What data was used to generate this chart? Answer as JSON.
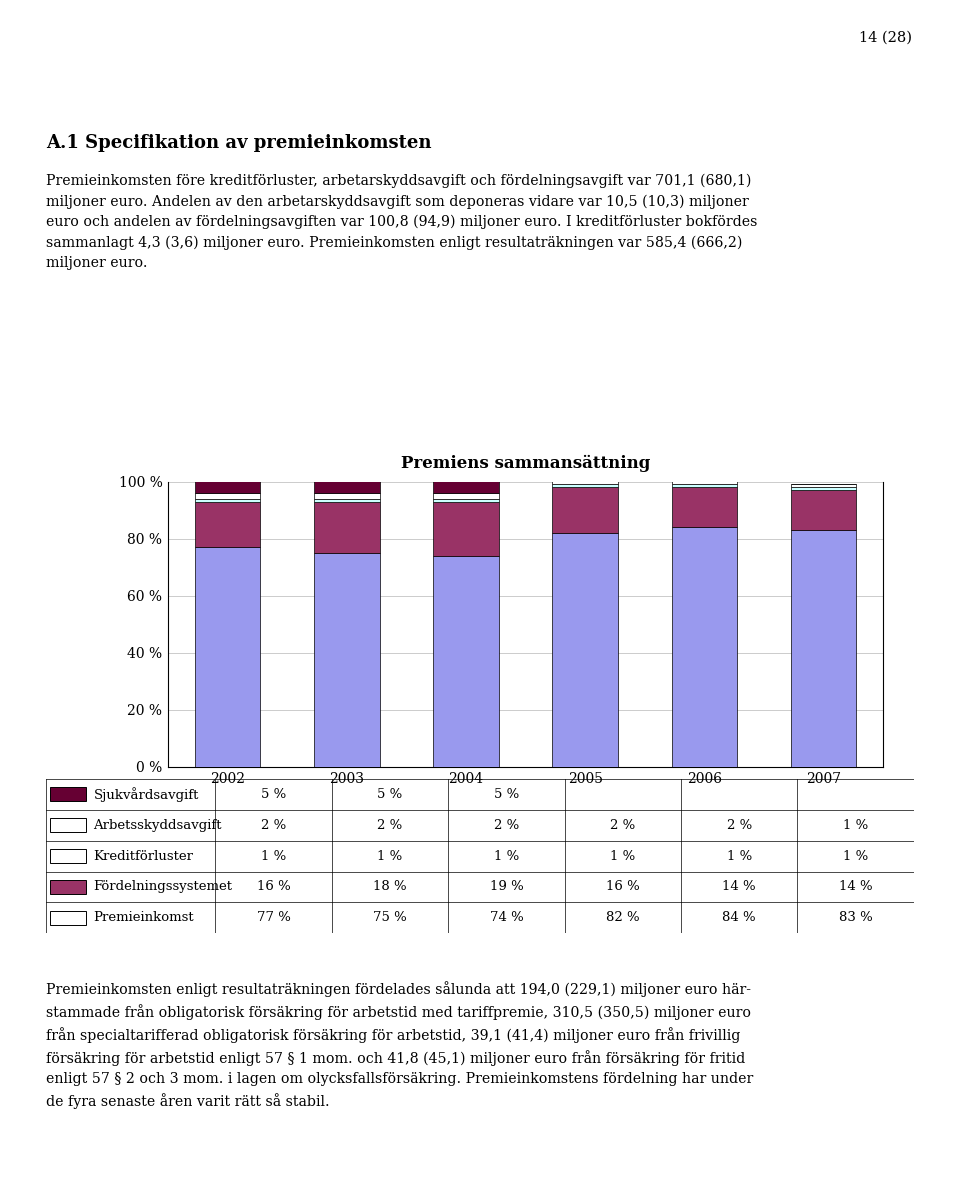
{
  "title": "Premiens sammansättning",
  "years": [
    2002,
    2003,
    2004,
    2005,
    2006,
    2007
  ],
  "stack_order": [
    "Premieinkomst",
    "Fördelningssystemet",
    "Kreditförluster",
    "Arbetsskyddsavgift",
    "Sjukvårdsavgift"
  ],
  "data": {
    "Premieinkomst": [
      77,
      75,
      74,
      82,
      84,
      83
    ],
    "Fördelningssystemet": [
      16,
      18,
      19,
      16,
      14,
      14
    ],
    "Kreditförluster": [
      1,
      1,
      1,
      1,
      1,
      1
    ],
    "Arbetsskyddsavgift": [
      2,
      2,
      2,
      2,
      2,
      1
    ],
    "Sjukvårdsavgift": [
      5,
      5,
      5,
      0,
      0,
      0
    ]
  },
  "colors": {
    "Premieinkomst": "#9999EE",
    "Fördelningssystemet": "#993366",
    "Kreditförluster": "#CCFFFF",
    "Arbetsskyddsavgift": "#FFFFFF",
    "Sjukvårdsavgift": "#660033"
  },
  "legend_order": [
    "Sjukvårdsavgift",
    "Arbetsskyddsavgift",
    "Kreditförluster",
    "Fördelningssystemet",
    "Premieinkomst"
  ],
  "legend_filled": {
    "Sjukvårdsavgift": true,
    "Arbetsskyddsavgift": false,
    "Kreditförluster": false,
    "Fördelningssystemet": true,
    "Premieinkomst": false
  },
  "table_rows": [
    [
      "Sjukvårdsavgift",
      "5 %",
      "5 %",
      "5 %",
      "",
      "",
      ""
    ],
    [
      "Arbetsskyddsavgift",
      "2 %",
      "2 %",
      "2 %",
      "2 %",
      "2 %",
      "1 %"
    ],
    [
      "Kreditförluster",
      "1 %",
      "1 %",
      "1 %",
      "1 %",
      "1 %",
      "1 %"
    ],
    [
      "Fördelningssystemet",
      "16 %",
      "18 %",
      "19 %",
      "16 %",
      "14 %",
      "14 %"
    ],
    [
      "Premieinkomst",
      "77 %",
      "75 %",
      "74 %",
      "82 %",
      "84 %",
      "83 %"
    ]
  ],
  "page_number": "14 (28)",
  "heading": "A.1 Specifikation av premieinkomsten",
  "body_top": "Premieinkomsten före kreditförluster, arbetarskyddsavgift och fördelningsavgift var 701,1 (680,1)\nmiljoner euro. Andelen av den arbetarskyddsavgift som deponeras vidare var 10,5 (10,3) miljoner\neuro och andelen av fördelningsavgiften var 100,8 (94,9) miljoner euro. I kreditförluster bokfördes\nsammanlagt 4,3 (3,6) miljoner euro. Premieinkomsten enligt resultaträkningen var 585,4 (666,2)\nmiljoner euro.",
  "body_bottom": "Premieinkomsten enligt resultaträkningen fördelades sålunda att 194,0 (229,1) miljoner euro här-\nstammade från obligatorisk försäkring för arbetstid med tariffpremie, 310,5 (350,5) miljoner euro\nfrån specialtarifferad obligatorisk försäkring för arbetstid, 39,1 (41,4) miljoner euro från frivillig\nförsäkring för arbetstid enligt 57 § 1 mom. och 41,8 (45,1) miljoner euro från försäkring för fritid\nenligt 57 § 2 och 3 mom. i lagen om olycksfallsförsäkring. Premieinkomstens fördelning har under\nde fyra senaste åren varit rätt så stabil.",
  "yticks": [
    0,
    20,
    40,
    60,
    80,
    100
  ],
  "ytick_labels": [
    "0 %",
    "20 %",
    "40 %",
    "60 %",
    "80 %",
    "100 %"
  ]
}
